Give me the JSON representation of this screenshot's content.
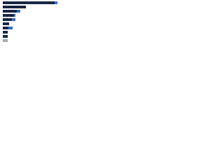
{
  "chart_data": {
    "type": "stacked-bar-horizontal",
    "categories": [
      null,
      null,
      null,
      null,
      null,
      null,
      null,
      null,
      null,
      null
    ],
    "series": [
      {
        "color": "#1b2a47",
        "values": [
          74,
          33,
          20,
          16,
          13,
          9,
          8,
          7,
          7,
          null
        ]
      },
      {
        "color": "#2f6fd6",
        "values": [
          4,
          null,
          5,
          2,
          5,
          null,
          6,
          null,
          null,
          null
        ]
      },
      {
        "color": "#a8adb5",
        "values": [
          null,
          null,
          null,
          null,
          null,
          null,
          null,
          null,
          null,
          7
        ]
      }
    ],
    "xlim": [
      0,
      92
    ]
  }
}
